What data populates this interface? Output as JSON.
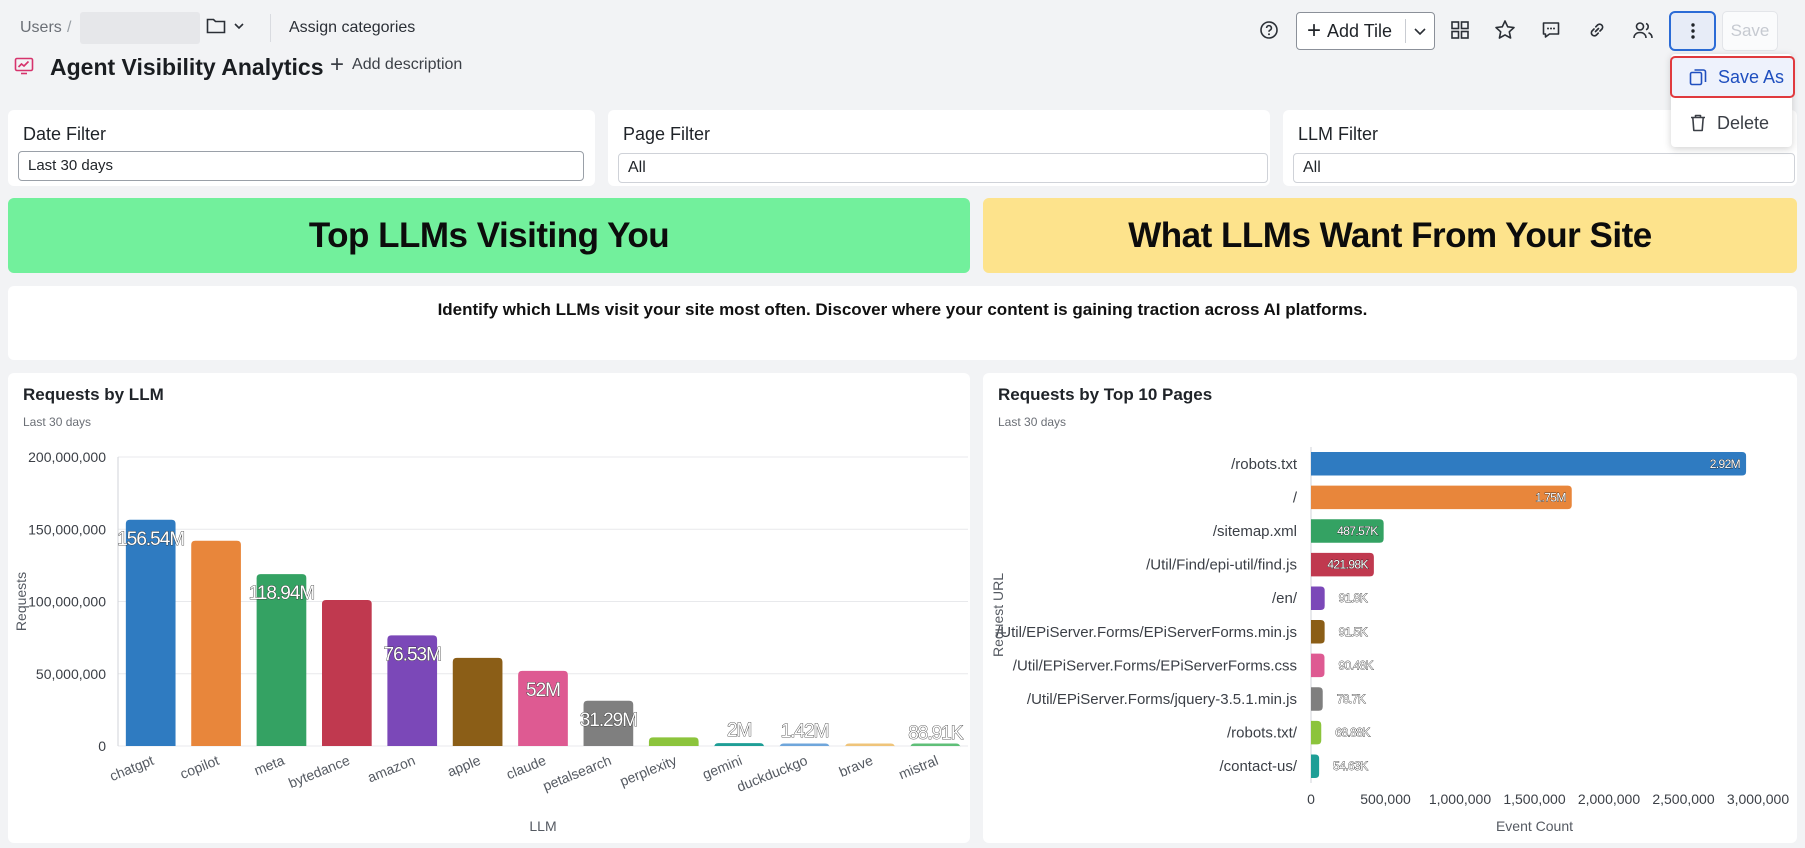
{
  "breadcrumb": {
    "users": "Users",
    "separator": "/"
  },
  "toolbar": {
    "assign_categories": "Assign categories",
    "add_tile": "Add Tile",
    "save": "Save",
    "icons": [
      "help-icon",
      "plus-icon",
      "grid-icon",
      "star-icon",
      "comment-icon",
      "link-icon",
      "users-icon",
      "more-vertical-icon"
    ]
  },
  "page": {
    "title": "Agent Visibility Analytics",
    "add_description": "Add description"
  },
  "menu": {
    "save_as": "Save As",
    "delete": "Delete"
  },
  "filters": [
    {
      "label": "Date Filter",
      "value": "Last 30 days"
    },
    {
      "label": "Page Filter",
      "value": "All"
    },
    {
      "label": "LLM Filter",
      "value": "All"
    }
  ],
  "banners": {
    "left": "Top LLMs Visiting You",
    "right": "What LLMs Want From Your Site",
    "left_color": "#72f09c",
    "right_color": "#fde38c"
  },
  "description": "Identify which LLMs visit your site most often. Discover where your content is gaining traction across AI platforms.",
  "tiles": {
    "llm": {
      "title": "Requests by LLM",
      "subtitle": "Last 30 days"
    },
    "pages": {
      "title": "Requests by Top 10 Pages",
      "subtitle": "Last 30 days"
    }
  },
  "chart_data": [
    {
      "type": "bar",
      "orientation": "vertical",
      "xlabel": "LLM",
      "ylabel": "Requests",
      "ylim": [
        0,
        200000000
      ],
      "yticks": [
        0,
        50000000,
        100000000,
        150000000,
        200000000
      ],
      "ytick_labels": [
        "0",
        "50,000,000",
        "100,000,000",
        "150,000,000",
        "200,000,000"
      ],
      "grid": true,
      "categories": [
        "chatgpt",
        "copilot",
        "meta",
        "bytedance",
        "amazon",
        "apple",
        "claude",
        "petalsearch",
        "perplexity",
        "gemini",
        "duckduckgo",
        "brave",
        "mistral"
      ],
      "values": [
        156540000,
        142000000,
        118940000,
        101000000,
        76530000,
        61000000,
        52000000,
        31290000,
        6000000,
        2000000,
        1420000,
        1000000,
        88910
      ],
      "data_labels": [
        "156.54M",
        "",
        "118.94M",
        "",
        "76.53M",
        "",
        "52M",
        "31.29M",
        "",
        "2M",
        "1.42M",
        "",
        "88.91K"
      ],
      "colors": [
        "#2f7bc1",
        "#e8863b",
        "#34a263",
        "#c0394f",
        "#7b48b8",
        "#8b5e17",
        "#de5a92",
        "#7f7f7f",
        "#8cc43c",
        "#1e9e96",
        "#6fa6db",
        "#efc47a",
        "#5fbf78"
      ]
    },
    {
      "type": "bar",
      "orientation": "horizontal",
      "xlabel": "Event Count",
      "ylabel": "Request URL",
      "xlim": [
        0,
        3000000
      ],
      "xticks": [
        0,
        500000,
        1000000,
        1500000,
        2000000,
        2500000,
        3000000
      ],
      "xtick_labels": [
        "0",
        "500,000",
        "1,000,000",
        "1,500,000",
        "2,000,000",
        "2,500,000",
        "3,000,000"
      ],
      "categories": [
        "/robots.txt",
        "/",
        "/sitemap.xml",
        "/Util/Find/epi-util/find.js",
        "/en/",
        "/Util/EPiServer.Forms/EPiServerForms.min.js",
        "/Util/EPiServer.Forms/EPiServerForms.css",
        "/Util/EPiServer.Forms/jquery-3.5.1.min.js",
        "/robots.txt/",
        "/contact-us/"
      ],
      "values": [
        2920000,
        1750000,
        487570,
        421980,
        91800,
        91500,
        90480,
        78700,
        68880,
        54630
      ],
      "data_labels": [
        "2.92M",
        "1.75M",
        "487.57K",
        "421.98K",
        "91.8K",
        "91.5K",
        "90.48K",
        "78.7K",
        "68.88K",
        "54.63K"
      ],
      "colors": [
        "#2f7bc1",
        "#e8863b",
        "#34a263",
        "#c0394f",
        "#7b48b8",
        "#8b5e17",
        "#de5a92",
        "#7f7f7f",
        "#8cc43c",
        "#1e9e96"
      ]
    }
  ]
}
